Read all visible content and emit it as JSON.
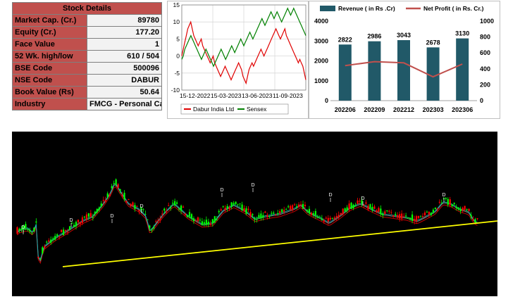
{
  "stock_details": {
    "title": "Stock Details",
    "rows": [
      {
        "label": "Market Cap. (Cr.)",
        "value": "89780"
      },
      {
        "label": "Equity (Cr.)",
        "value": "177.20"
      },
      {
        "label": "Face Value",
        "value": "1"
      },
      {
        "label": "52 Wk. high/low",
        "value": "610 / 504"
      },
      {
        "label": "BSE Code",
        "value": "500096"
      },
      {
        "label": "NSE Code",
        "value": "DABUR"
      },
      {
        "label": "Book Value (Rs)",
        "value": "50.64"
      },
      {
        "label": "Industry",
        "value": "FMCG - Personal Care"
      }
    ]
  },
  "chart_data": [
    {
      "type": "line",
      "x_ticks": [
        "15-12-2022",
        "15-03-2023",
        "13-06-2023",
        "11-09-2023"
      ],
      "ylim": [
        -10,
        15
      ],
      "y_ticks": [
        15,
        10,
        5,
        0,
        -5,
        -10
      ],
      "grid": true,
      "legend_position": "bottom",
      "series": [
        {
          "name": "Dabur India Ltd",
          "color": "#e00000",
          "values": [
            0,
            2,
            4,
            6,
            8,
            9,
            10,
            8,
            6,
            5,
            4,
            3,
            4,
            5,
            3,
            2,
            1,
            0,
            -1,
            -2,
            -1,
            0,
            -2,
            -3,
            -4,
            -5,
            -6,
            -5,
            -4,
            -3,
            -4,
            -5,
            -6,
            -7,
            -6,
            -5,
            -4,
            -3,
            -2,
            -3,
            -4,
            -6,
            -7,
            -8,
            -6,
            -4,
            -3,
            -2,
            -3,
            -2,
            -1,
            0,
            1,
            2,
            1,
            0,
            1,
            2,
            3,
            4,
            5,
            6,
            7,
            8,
            7,
            6,
            5,
            6,
            7,
            8,
            6,
            5,
            4,
            3,
            2,
            1,
            0,
            -1,
            -2,
            -1,
            -2,
            -3,
            -5,
            -7
          ]
        },
        {
          "name": "Sensex",
          "color": "#008000",
          "values": [
            -1,
            0,
            2,
            3,
            4,
            5,
            6,
            5,
            4,
            3,
            2,
            1,
            0,
            -1,
            0,
            1,
            2,
            1,
            0,
            -1,
            -2,
            -3,
            -2,
            -1,
            0,
            1,
            2,
            1,
            0,
            -1,
            0,
            1,
            2,
            3,
            2,
            1,
            2,
            3,
            4,
            5,
            4,
            3,
            4,
            5,
            6,
            7,
            6,
            5,
            6,
            7,
            8,
            9,
            10,
            11,
            10,
            9,
            10,
            11,
            12,
            13,
            12,
            11,
            12,
            13,
            12,
            11,
            10,
            11,
            12,
            13,
            14,
            13,
            12,
            13,
            14,
            13,
            12,
            11,
            10,
            9,
            8,
            7,
            6
          ]
        }
      ]
    },
    {
      "type": "bar",
      "categories": [
        "202206",
        "202209",
        "202212",
        "202303",
        "202306"
      ],
      "series": [
        {
          "name": "Revenue ( in Rs .Cr)",
          "axis": "left",
          "color": "#215968",
          "values": [
            2822,
            2986,
            3043,
            2678,
            3130
          ]
        },
        {
          "name": "Net Profit ( in Rs. Cr.)",
          "axis": "right",
          "type": "line",
          "color": "#c0504d",
          "values": [
            440,
            490,
            475,
            300,
            460
          ]
        }
      ],
      "ylim_left": [
        0,
        4000
      ],
      "y_ticks_left": [
        0,
        1000,
        2000,
        3000,
        4000
      ],
      "ylim_right": [
        0,
        1000
      ],
      "y_ticks_right": [
        0,
        200,
        400,
        600,
        800,
        1000
      ],
      "data_labels": [
        "2822",
        "2986",
        "3043",
        "2678",
        "3130"
      ],
      "legend_position": "top",
      "grid": false
    },
    {
      "type": "candlestick",
      "background": "#000000",
      "markers": [
        "D",
        "D",
        "D",
        "D",
        "D",
        "D",
        "D",
        "D",
        "D"
      ],
      "trendline_color": "#ffff00"
    }
  ]
}
